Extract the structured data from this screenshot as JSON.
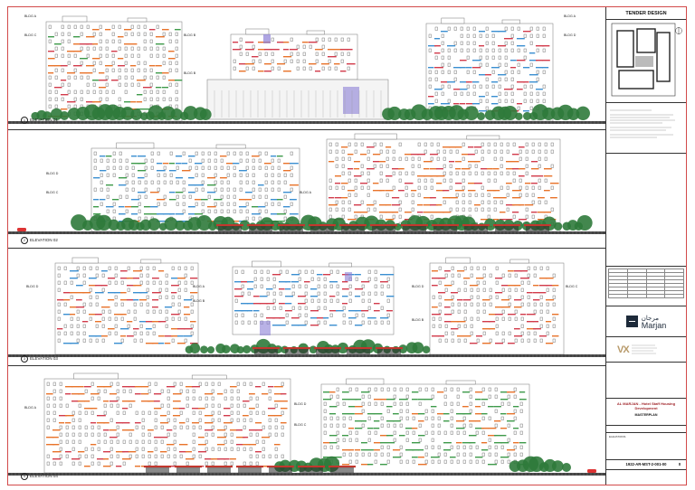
{
  "sheet_status": "TENDER DESIGN",
  "project_title": "AL MARJAN - Hotel Staff Housing Development",
  "drawing_title": "MASTERPLAN",
  "sheet_subject": "ELEVATIONS",
  "drawing_number": "1922-AR-MST-2-001-00",
  "revision": "0",
  "client": {
    "name": "Marjan",
    "name_arabic": "مرجان"
  },
  "consultant": {
    "mark": "VX"
  },
  "elevations": [
    {
      "id": "elev1",
      "label": "ELEVATION 01",
      "number": "1",
      "buildings": [
        {
          "label": "BLDG A"
        },
        {
          "label": "BLDG C"
        },
        {
          "label": "BLDG B"
        },
        {
          "label": "BLDG B"
        },
        {
          "label": "BLDG A"
        },
        {
          "label": "BLDG D"
        }
      ]
    },
    {
      "id": "elev2",
      "label": "ELEVATION 02",
      "number": "2",
      "buildings": [
        {
          "label": "BLDG D"
        },
        {
          "label": "BLDG C"
        },
        {
          "label": "BLDG A"
        }
      ]
    },
    {
      "id": "elev3",
      "label": "ELEVATION 03",
      "number": "3",
      "buildings": [
        {
          "label": "BLDG D"
        },
        {
          "label": "BLDG A"
        },
        {
          "label": "BLDG B"
        },
        {
          "label": "BLDG D"
        },
        {
          "label": "BLDG C"
        },
        {
          "label": "BLDG B"
        }
      ]
    },
    {
      "id": "elev4",
      "label": "ELEVATION 04",
      "number": "4",
      "buildings": [
        {
          "label": "BLDG A"
        },
        {
          "label": "BLDG D"
        },
        {
          "label": "BLDG C"
        }
      ]
    }
  ],
  "colors": {
    "border_red": "#d24a4a",
    "orange": "#e8732a",
    "blue": "#3b8fd1",
    "green": "#3e9a4a",
    "red": "#d23b4b",
    "tree": "#2f7a3b",
    "purple": "#8b7fd6"
  }
}
